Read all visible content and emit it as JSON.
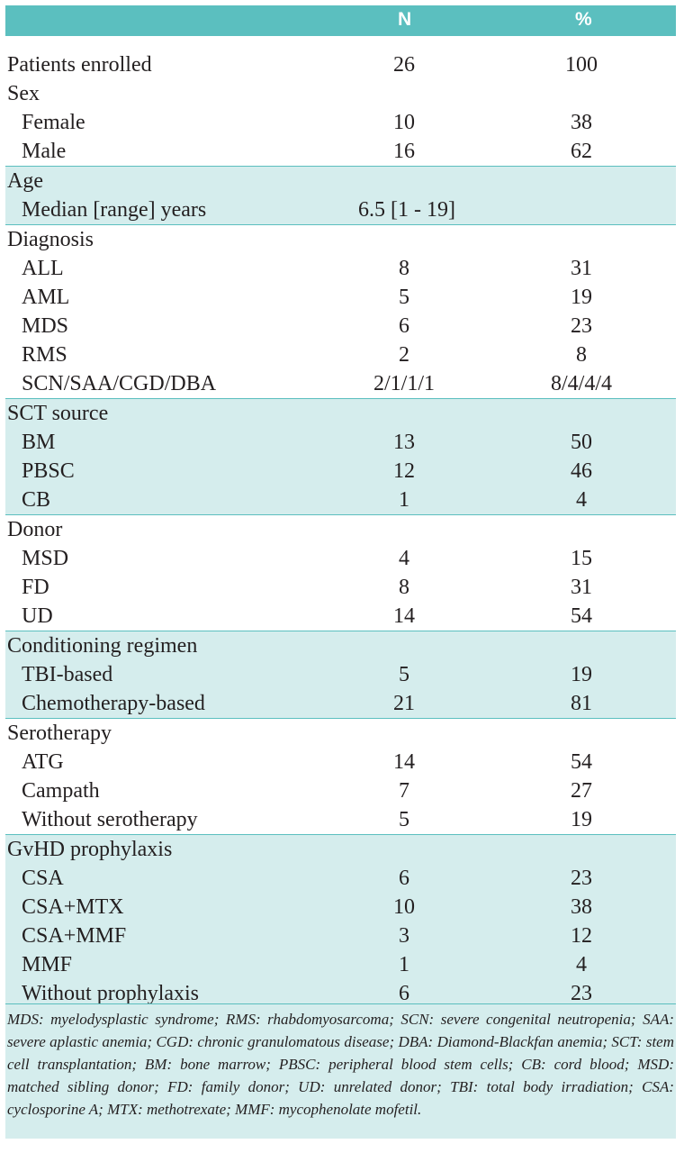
{
  "header": {
    "col_n": "N",
    "col_pct": "%"
  },
  "rows": {
    "enrolled": {
      "label": "Patients enrolled",
      "n": "26",
      "pct": "100"
    },
    "sex": {
      "label": "Sex",
      "female": {
        "label": "Female",
        "n": "10",
        "pct": "38"
      },
      "male": {
        "label": "Male",
        "n": "16",
        "pct": "62"
      }
    },
    "age": {
      "label": "Age",
      "median": {
        "label": "Median [range] years",
        "n": "6.5 [1 - 19]"
      }
    },
    "diagnosis": {
      "label": "Diagnosis",
      "items": [
        {
          "label": "ALL",
          "n": "8",
          "pct": "31"
        },
        {
          "label": "AML",
          "n": "5",
          "pct": "19"
        },
        {
          "label": "MDS",
          "n": "6",
          "pct": "23"
        },
        {
          "label": "RMS",
          "n": "2",
          "pct": "8"
        },
        {
          "label": "SCN/SAA/CGD/DBA",
          "n": "2/1/1/1",
          "pct": "8/4/4/4"
        }
      ]
    },
    "sct": {
      "label": "SCT source",
      "items": [
        {
          "label": "BM",
          "n": "13",
          "pct": "50"
        },
        {
          "label": "PBSC",
          "n": "12",
          "pct": "46"
        },
        {
          "label": "CB",
          "n": "1",
          "pct": "4"
        }
      ]
    },
    "donor": {
      "label": "Donor",
      "items": [
        {
          "label": "MSD",
          "n": "4",
          "pct": "15"
        },
        {
          "label": "FD",
          "n": "8",
          "pct": "31"
        },
        {
          "label": "UD",
          "n": "14",
          "pct": "54"
        }
      ]
    },
    "conditioning": {
      "label": "Conditioning regimen",
      "items": [
        {
          "label": "TBI-based",
          "n": "5",
          "pct": "19"
        },
        {
          "label": "Chemotherapy-based",
          "n": "21",
          "pct": "81"
        }
      ]
    },
    "serotherapy": {
      "label": "Serotherapy",
      "items": [
        {
          "label": "ATG",
          "n": "14",
          "pct": "54"
        },
        {
          "label": "Campath",
          "n": "7",
          "pct": "27"
        },
        {
          "label": "Without serotherapy",
          "n": "5",
          "pct": "19"
        }
      ]
    },
    "gvhd": {
      "label": "GvHD prophylaxis",
      "items": [
        {
          "label": "CSA",
          "n": "6",
          "pct": "23"
        },
        {
          "label": "CSA+MTX",
          "n": "10",
          "pct": "38"
        },
        {
          "label": "CSA+MMF",
          "n": "3",
          "pct": "12"
        },
        {
          "label": "MMF",
          "n": "1",
          "pct": "4"
        },
        {
          "label": "Without prophylaxis",
          "n": "6",
          "pct": "23"
        }
      ]
    }
  },
  "footnote": "MDS: myelodysplastic syndrome; RMS: rhabdomyosarcoma; SCN:  severe congenital neutropenia; SAA:  severe aplastic anemia; CGD:  chronic granulomatous disease; DBA: Diamond-Blackfan anemia; SCT: stem cell transplantation; BM:  bone marrow; PBSC: peripheral blood stem cells; CB: cord blood; MSD:  matched sibling donor; FD:  family donor; UD:  unrelated donor; TBI:  total body irradiation; CSA:  cyclosporine A; MTX: methotrexate; MMF:  mycophenolate mofetil."
}
